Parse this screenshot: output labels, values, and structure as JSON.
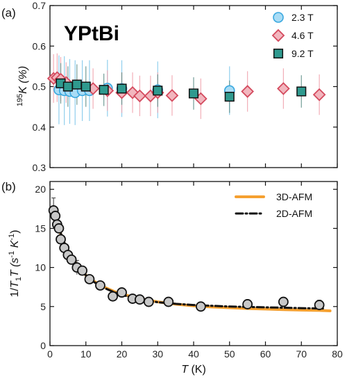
{
  "chart_data": [
    {
      "type": "scatter",
      "panel_label": "(a)",
      "title": "YPtBi",
      "ylabel_sup": "195",
      "ylabel_main": "K (%)",
      "ylim": [
        0.3,
        0.7
      ],
      "yticks": [
        0.3,
        0.4,
        0.5,
        0.6,
        0.7
      ],
      "xlim": [
        0,
        80
      ],
      "legend_position": "top-right",
      "series": [
        {
          "name": "2.3 T",
          "marker": "circle",
          "fill": "#a9dcf5",
          "stroke": "#3aa8df",
          "err_color": "#7cc6ea",
          "points": [
            {
              "x": 2.5,
              "y": 0.492,
              "err": 0.085
            },
            {
              "x": 4.0,
              "y": 0.49,
              "err": 0.085
            },
            {
              "x": 5.5,
              "y": 0.488,
              "err": 0.08
            },
            {
              "x": 7.0,
              "y": 0.485,
              "err": 0.08
            },
            {
              "x": 9.0,
              "y": 0.49,
              "err": 0.075
            },
            {
              "x": 11.0,
              "y": 0.49,
              "err": 0.075
            },
            {
              "x": 16.0,
              "y": 0.496,
              "err": 0.07
            },
            {
              "x": 20.0,
              "y": 0.495,
              "err": 0.07
            },
            {
              "x": 30.0,
              "y": 0.492,
              "err": 0.07
            },
            {
              "x": 50.0,
              "y": 0.49,
              "err": 0.06
            }
          ]
        },
        {
          "name": "4.6 T",
          "marker": "diamond",
          "fill": "#f2b6be",
          "stroke": "#d44a5e",
          "err_color": "#f0a0ab",
          "points": [
            {
              "x": 1.0,
              "y": 0.52,
              "err": 0.06
            },
            {
              "x": 2.0,
              "y": 0.522,
              "err": 0.06
            },
            {
              "x": 3.0,
              "y": 0.518,
              "err": 0.055
            },
            {
              "x": 4.5,
              "y": 0.51,
              "err": 0.05
            },
            {
              "x": 12.0,
              "y": 0.495,
              "err": 0.05
            },
            {
              "x": 16.0,
              "y": 0.49,
              "err": 0.05
            },
            {
              "x": 20.0,
              "y": 0.485,
              "err": 0.05
            },
            {
              "x": 23.0,
              "y": 0.485,
              "err": 0.05
            },
            {
              "x": 25.0,
              "y": 0.477,
              "err": 0.05
            },
            {
              "x": 28.0,
              "y": 0.477,
              "err": 0.05
            },
            {
              "x": 30.0,
              "y": 0.485,
              "err": 0.05
            },
            {
              "x": 34.0,
              "y": 0.478,
              "err": 0.05
            },
            {
              "x": 42.0,
              "y": 0.47,
              "err": 0.05
            },
            {
              "x": 55.0,
              "y": 0.488,
              "err": 0.05
            },
            {
              "x": 65.0,
              "y": 0.495,
              "err": 0.05
            },
            {
              "x": 75.0,
              "y": 0.48,
              "err": 0.05
            }
          ]
        },
        {
          "name": "9.2 T",
          "marker": "square",
          "fill": "#2f9a8f",
          "stroke": "#111111",
          "err_color": "#5a8c86",
          "points": [
            {
              "x": 3.0,
              "y": 0.508,
              "err": 0.05
            },
            {
              "x": 5.0,
              "y": 0.5,
              "err": 0.05
            },
            {
              "x": 7.5,
              "y": 0.505,
              "err": 0.05
            },
            {
              "x": 10.0,
              "y": 0.5,
              "err": 0.05
            },
            {
              "x": 15.0,
              "y": 0.492,
              "err": 0.04
            },
            {
              "x": 20.0,
              "y": 0.495,
              "err": 0.04
            },
            {
              "x": 30.0,
              "y": 0.49,
              "err": 0.04
            },
            {
              "x": 40.0,
              "y": 0.483,
              "err": 0.04
            },
            {
              "x": 50.0,
              "y": 0.475,
              "err": 0.04
            },
            {
              "x": 70.0,
              "y": 0.488,
              "err": 0.04
            }
          ]
        }
      ]
    },
    {
      "type": "scatter",
      "panel_label": "(b)",
      "ylabel": "1/T₁T (s⁻¹ K⁻¹)",
      "ylabel_parts": [
        "1/",
        "T",
        "1",
        "T",
        " (s",
        "-1",
        " K",
        "-1",
        ")"
      ],
      "xlabel_italic": "T",
      "xlabel_rest": " (K)",
      "xlim": [
        0,
        80
      ],
      "xticks": [
        0,
        10,
        20,
        30,
        40,
        50,
        60,
        70,
        80
      ],
      "ylim": [
        0,
        21
      ],
      "yticks": [
        0,
        5,
        10,
        15,
        20
      ],
      "legend_position": "top-right",
      "fits": [
        {
          "name": "3D-AFM",
          "style": "solid",
          "color": "#f5a030",
          "x": [
            1,
            2,
            3,
            4,
            5,
            6,
            8,
            10,
            12,
            15,
            18,
            20,
            25,
            30,
            35,
            40,
            45,
            50,
            55,
            60,
            65,
            70,
            75,
            78
          ],
          "y": [
            17.0,
            15.8,
            14.3,
            13.1,
            12.1,
            11.3,
            10.0,
            9.0,
            8.3,
            7.5,
            6.9,
            6.6,
            6.0,
            5.6,
            5.3,
            5.1,
            4.95,
            4.85,
            4.75,
            4.68,
            4.6,
            4.55,
            4.5,
            4.45
          ]
        },
        {
          "name": "2D-AFM",
          "style": "dashdot",
          "color": "#111111",
          "x": [
            1,
            2,
            3,
            4,
            5,
            6,
            8,
            10,
            12,
            15,
            18,
            20,
            25,
            30,
            35,
            40,
            45,
            50,
            55,
            60,
            65,
            70,
            75,
            76
          ],
          "y": [
            17.2,
            15.9,
            14.4,
            13.2,
            12.2,
            11.3,
            10.0,
            9.0,
            8.2,
            7.4,
            6.8,
            6.5,
            5.9,
            5.55,
            5.35,
            5.2,
            5.1,
            5.0,
            4.95,
            4.9,
            4.85,
            4.8,
            4.75,
            4.75
          ]
        }
      ],
      "points": [
        {
          "x": 1.0,
          "y": 17.3,
          "err": 1.6
        },
        {
          "x": 1.5,
          "y": 16.6,
          "err": 0.6
        },
        {
          "x": 2.0,
          "y": 15.5,
          "err": 0.4
        },
        {
          "x": 2.5,
          "y": 15.0,
          "err": 0.4
        },
        {
          "x": 3.0,
          "y": 13.6,
          "err": 0.4
        },
        {
          "x": 4.0,
          "y": 12.5,
          "err": 0.3
        },
        {
          "x": 5.0,
          "y": 11.6,
          "err": 0.3
        },
        {
          "x": 6.0,
          "y": 11.0,
          "err": 0.3
        },
        {
          "x": 7.5,
          "y": 10.0,
          "err": 0.9
        },
        {
          "x": 9.0,
          "y": 9.6,
          "err": 0.3
        },
        {
          "x": 11.0,
          "y": 8.5,
          "err": 0.3
        },
        {
          "x": 14.0,
          "y": 7.7,
          "err": 0.3
        },
        {
          "x": 17.5,
          "y": 6.3,
          "err": 0.3
        },
        {
          "x": 20.0,
          "y": 6.8,
          "err": 0.3
        },
        {
          "x": 23.0,
          "y": 6.0,
          "err": 0.3
        },
        {
          "x": 25.0,
          "y": 5.9,
          "err": 0.3
        },
        {
          "x": 27.5,
          "y": 5.6,
          "err": 0.3
        },
        {
          "x": 33.0,
          "y": 5.6,
          "err": 0.3
        },
        {
          "x": 42.0,
          "y": 5.0,
          "err": 0.4
        },
        {
          "x": 55.0,
          "y": 5.3,
          "err": 0.4
        },
        {
          "x": 65.0,
          "y": 5.6,
          "err": 0.5
        },
        {
          "x": 75.0,
          "y": 5.2,
          "err": 0.6
        }
      ],
      "point_fill": "#c8c8c8",
      "point_stroke": "#111111"
    }
  ]
}
